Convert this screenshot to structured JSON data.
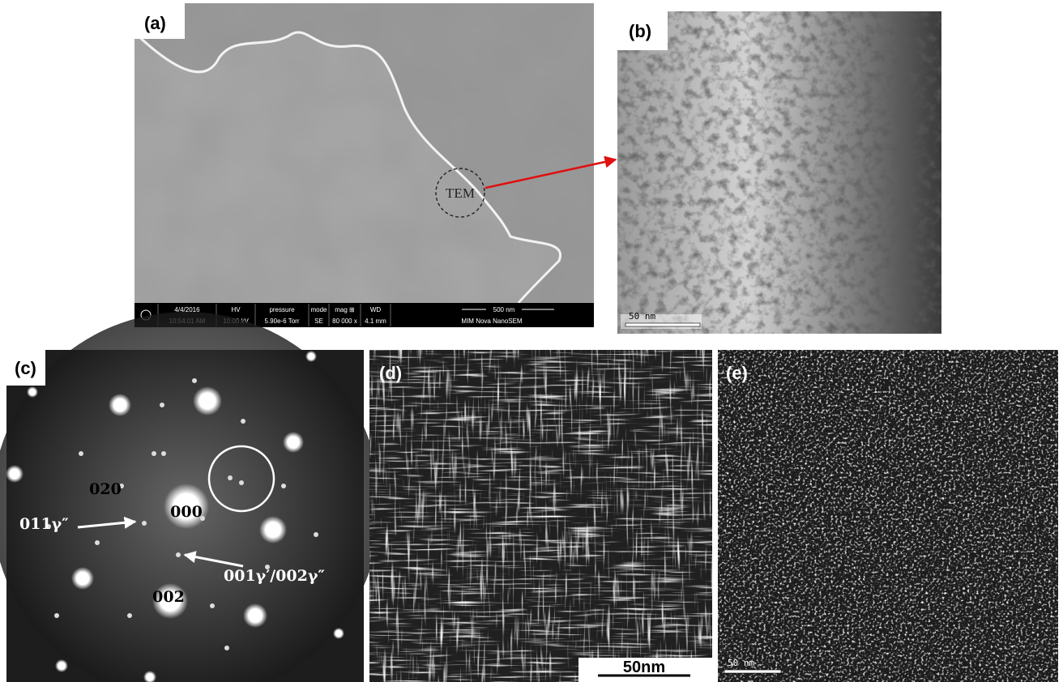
{
  "panels": [
    {
      "label": "(a)",
      "annotation": "TEM",
      "info_bar": [
        {
          "header": "4/4/2016",
          "value": "10:54:01 AM"
        },
        {
          "header": "HV",
          "value": "10.00 kV"
        },
        {
          "header": "pressure",
          "value": "5.90e-6 Torr"
        },
        {
          "header": "mode",
          "value": "SE"
        },
        {
          "header": "mag ⊞",
          "value": "80 000 x"
        },
        {
          "header": "WD",
          "value": "4.1 mm"
        }
      ],
      "scale_bar": "500 nm",
      "instrument": "MIM Nova NanoSEM"
    },
    {
      "label": "(b)",
      "scale_bar": "50 nm"
    },
    {
      "label": "(c)",
      "spots": [
        "020",
        "000",
        "002"
      ],
      "arrows": [
        "011γ″",
        "001γ′/002γ″"
      ]
    },
    {
      "label": "(d)",
      "scale_bar": "50nm"
    },
    {
      "label": "(e)",
      "scale_bar": "50 nm"
    }
  ]
}
